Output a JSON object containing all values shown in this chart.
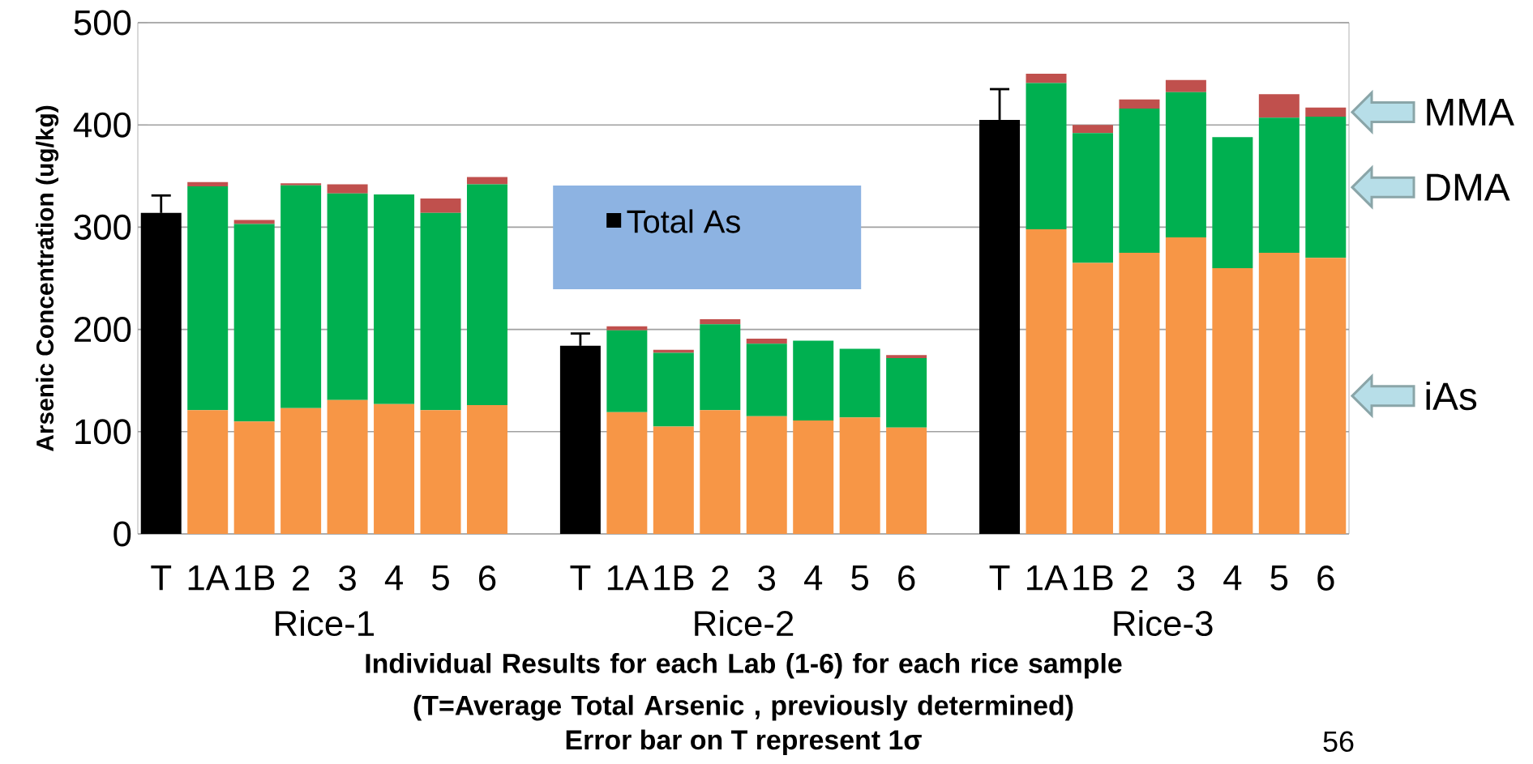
{
  "chart_data": {
    "type": "bar",
    "stacked": true,
    "ylabel": "Arsenic Concentration (ug/kg)",
    "xlabel": "Individual Results for each Lab (1-6) for each rice sample (T=Average Total Arsenic , previously determined)",
    "categories": [
      "T",
      "1A",
      "1B",
      "2",
      "3",
      "4",
      "5",
      "6",
      null,
      "T",
      "1A",
      "1B",
      "2",
      "3",
      "4",
      "5",
      "6",
      null,
      "T",
      "1A",
      "1B",
      "2",
      "3",
      "4",
      "5",
      "6"
    ],
    "series": [
      {
        "name": "Total As",
        "color": "#000000",
        "values": [
          314,
          null,
          null,
          null,
          null,
          null,
          null,
          null,
          null,
          184,
          null,
          null,
          null,
          null,
          null,
          null,
          null,
          null,
          405,
          null,
          null,
          null,
          null,
          null,
          null,
          null
        ],
        "errors": [
          17,
          null,
          null,
          null,
          null,
          null,
          null,
          null,
          null,
          12,
          null,
          null,
          null,
          null,
          null,
          null,
          null,
          null,
          30,
          null,
          null,
          null,
          null,
          null,
          null,
          null
        ]
      },
      {
        "name": "iAs",
        "color": "#f79646",
        "values": [
          null,
          121,
          110,
          123,
          131,
          127,
          121,
          126,
          null,
          null,
          119,
          105,
          121,
          115,
          111,
          114,
          104,
          null,
          null,
          298,
          265,
          275,
          290,
          260,
          275,
          270
        ]
      },
      {
        "name": "DMA",
        "color": "#00b050",
        "values": [
          null,
          219,
          193,
          218,
          202,
          205,
          193,
          216,
          null,
          null,
          80,
          72,
          84,
          71,
          78,
          67,
          68,
          null,
          null,
          143,
          127,
          141,
          142,
          128,
          132,
          138
        ]
      },
      {
        "name": "MMA",
        "color": "#c0504d",
        "values": [
          null,
          4,
          4,
          2,
          9,
          null,
          14,
          7,
          null,
          null,
          4,
          3,
          5,
          5,
          null,
          null,
          3,
          null,
          null,
          9,
          8,
          9,
          12,
          null,
          23,
          9
        ]
      }
    ],
    "ylim": [
      0,
      500
    ],
    "yticks": [
      0,
      100,
      200,
      300,
      400,
      500
    ],
    "grid": "y",
    "legend": "top",
    "annotations": [
      "Rice-1",
      "Rice-2",
      "Rice-3",
      "Error bar on T represent 1σ",
      "56"
    ]
  }
}
